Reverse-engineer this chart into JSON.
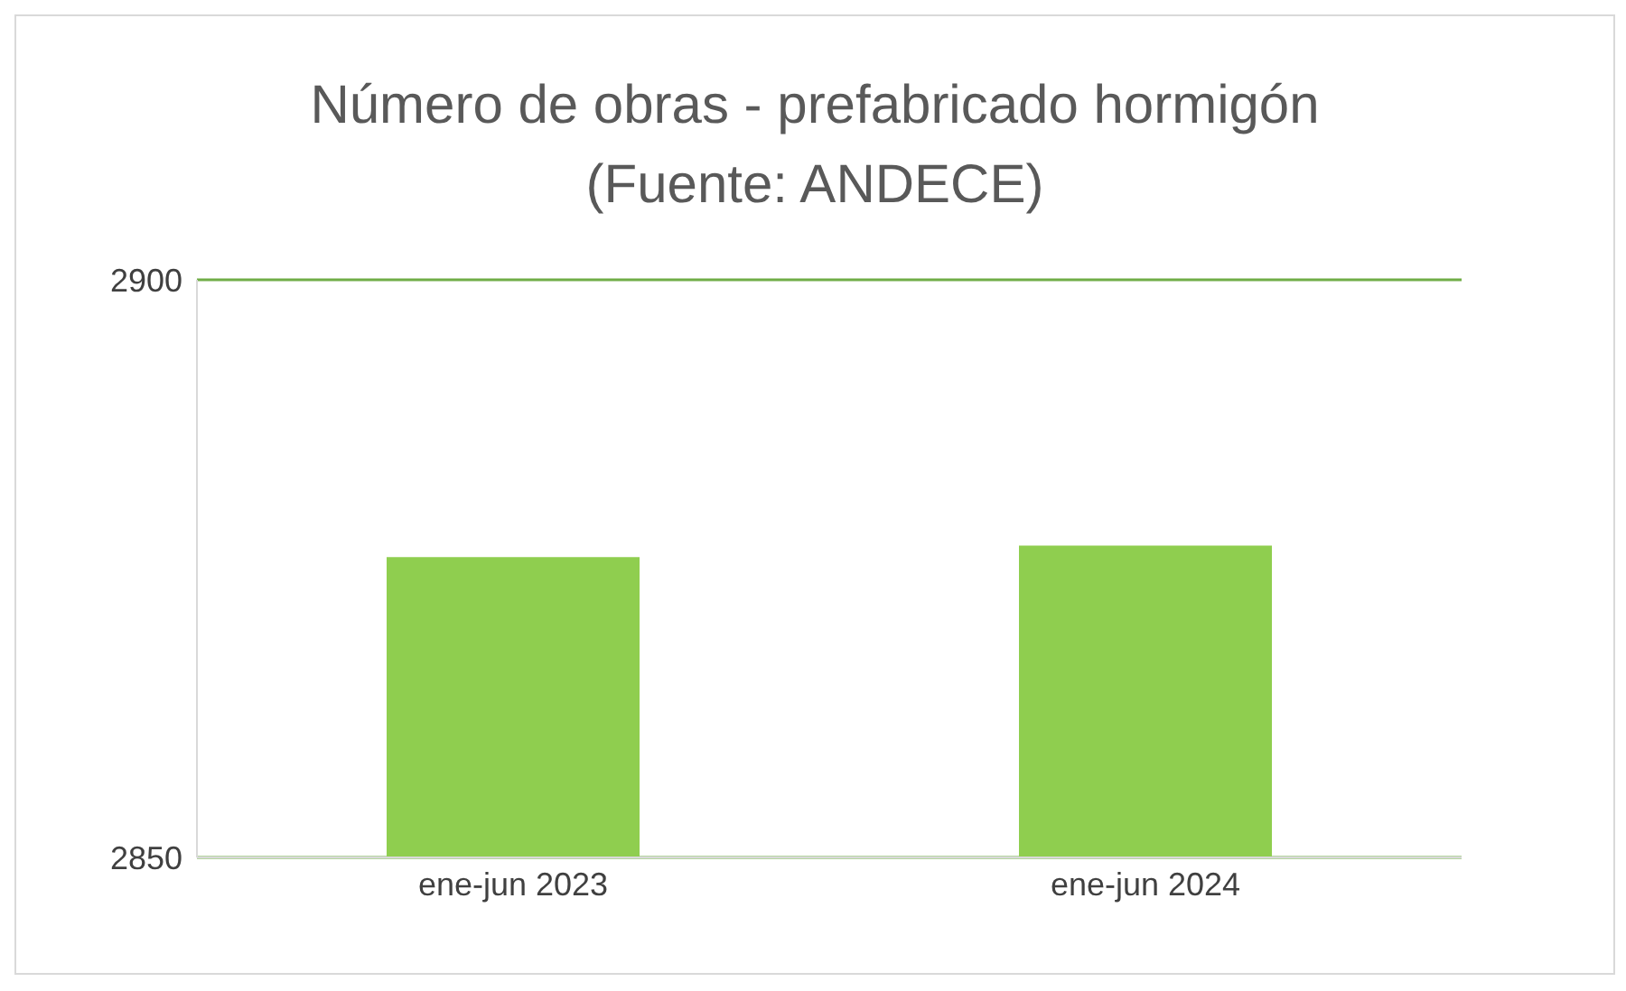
{
  "chart_data": {
    "type": "bar",
    "title": "Número de obras - prefabricado hormigón\n(Fuente: ANDECE)",
    "categories": [
      "ene-jun 2023",
      "ene-jun 2024"
    ],
    "values": [
      2876,
      2877
    ],
    "color": "#8fce4f",
    "ylim": [
      2850,
      2900
    ],
    "yticks": [
      2850,
      2900
    ],
    "grid": "y"
  }
}
